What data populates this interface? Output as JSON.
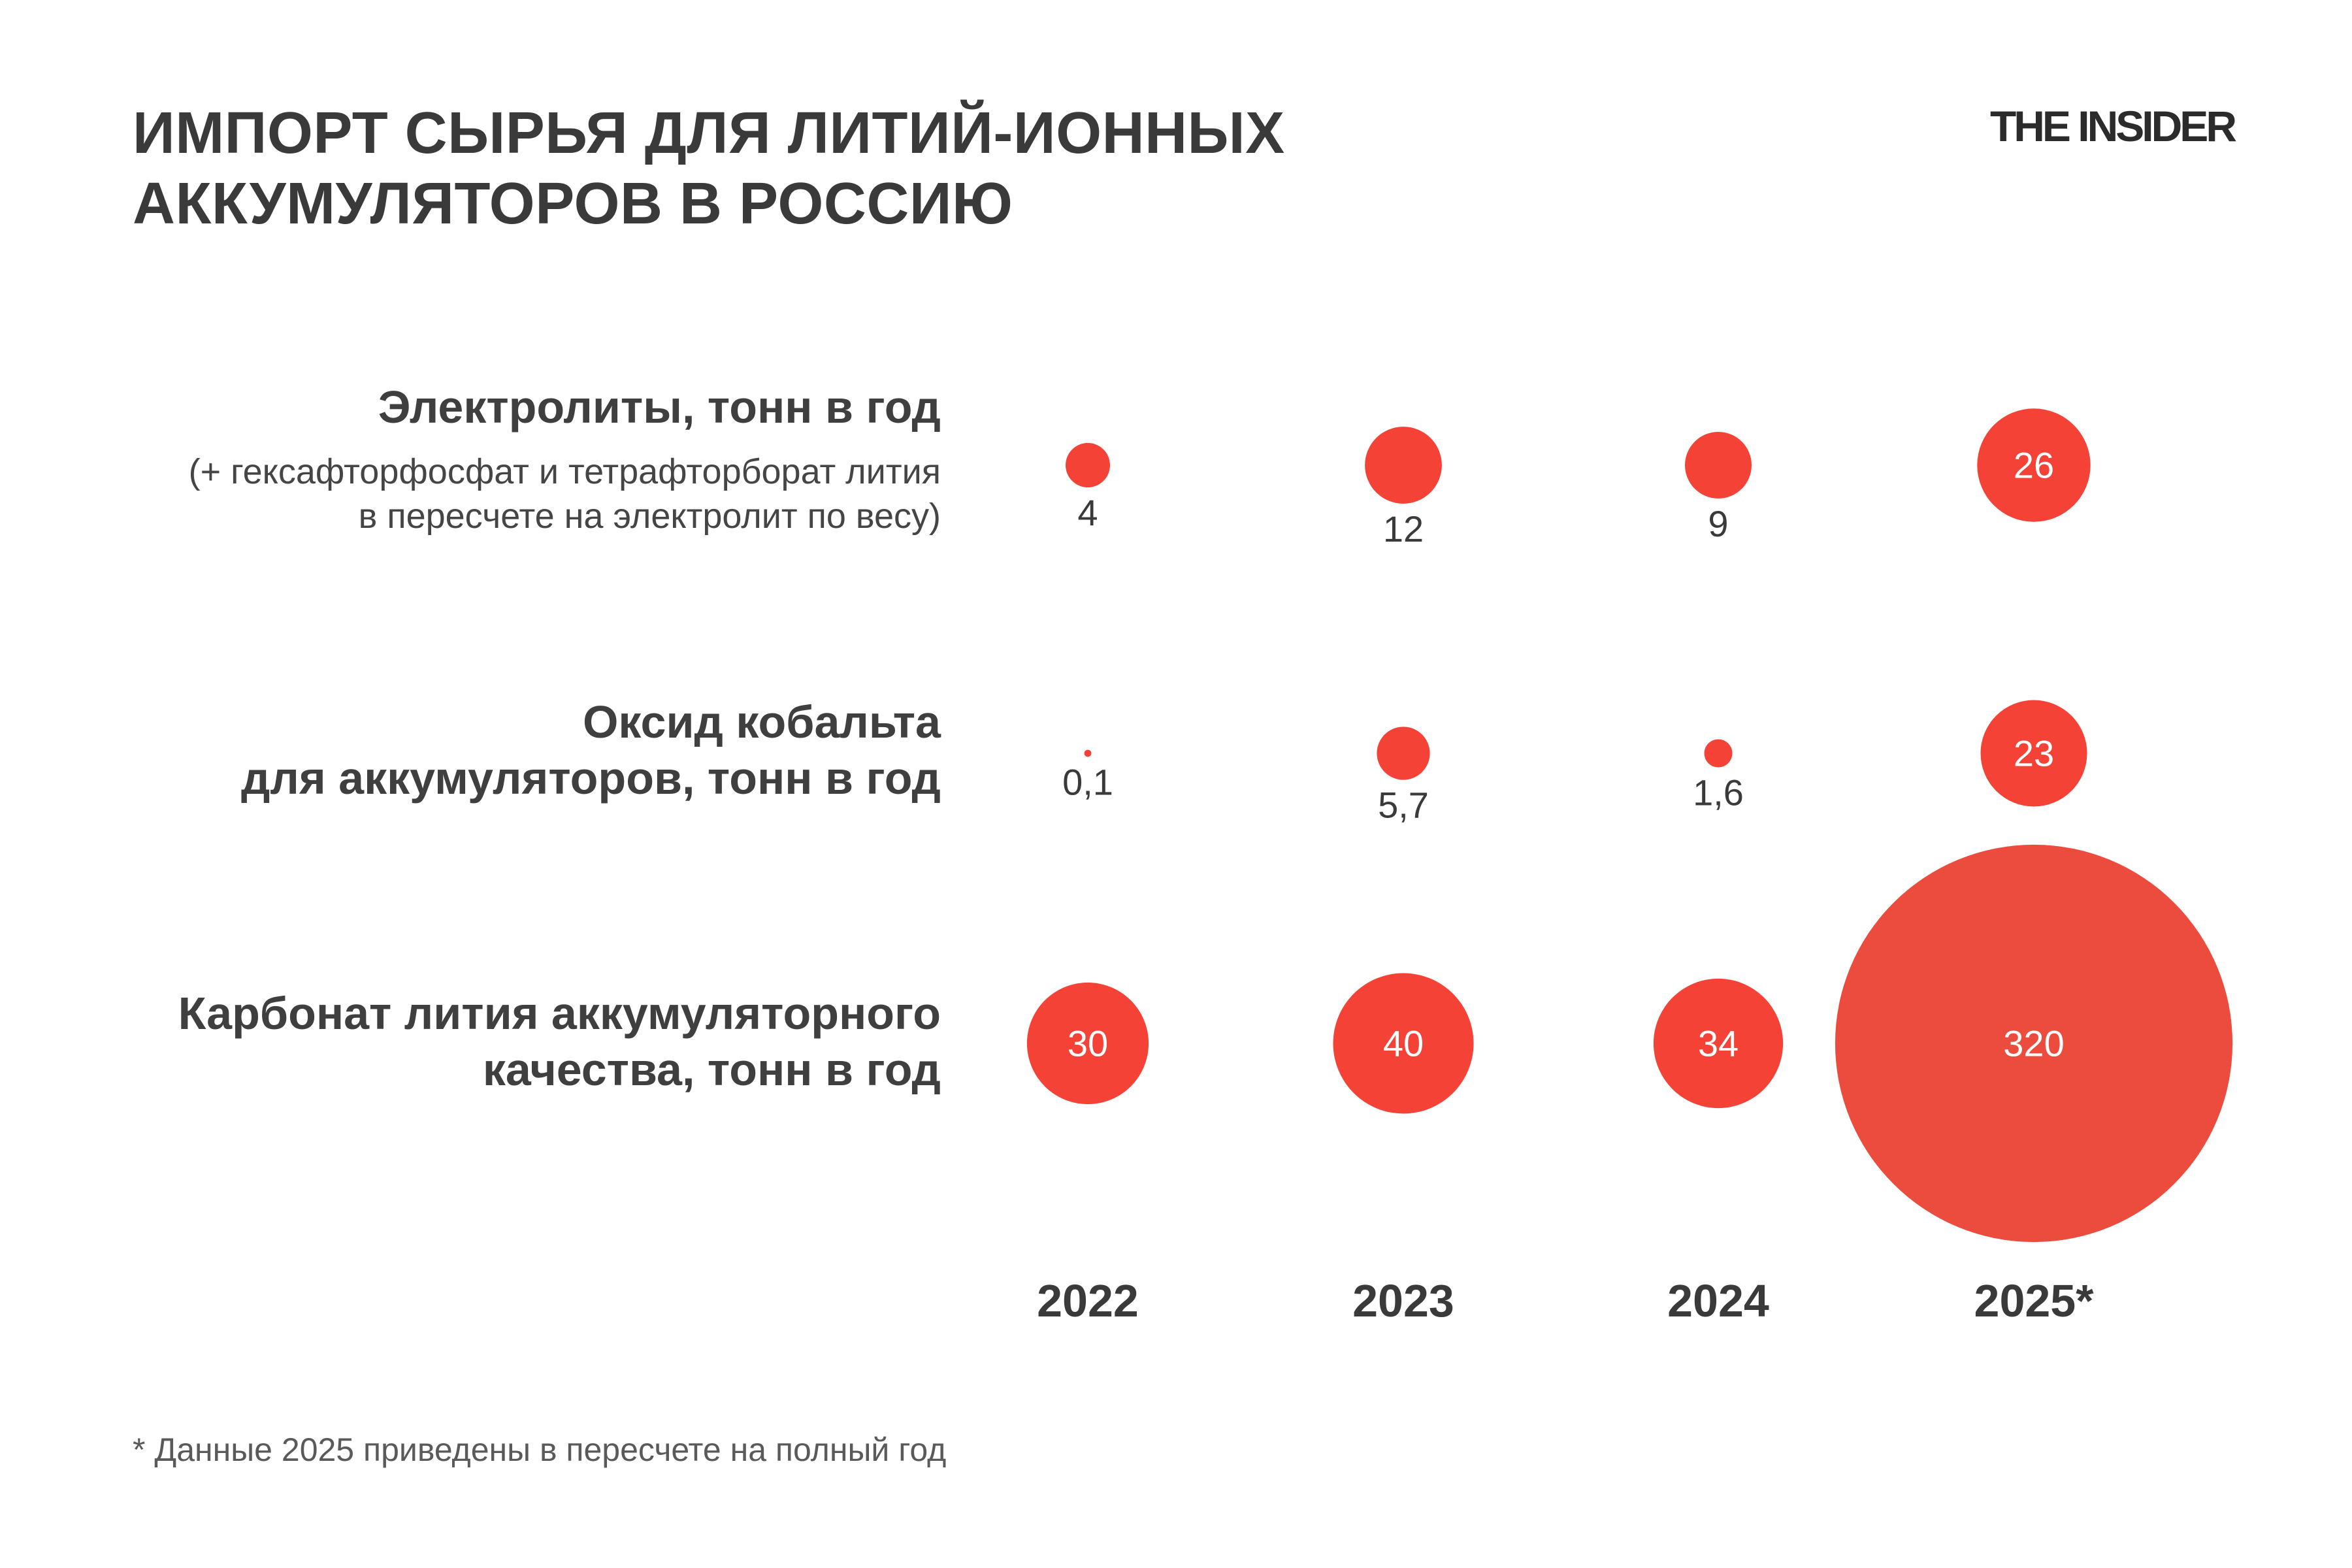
{
  "header": {
    "title_line1": "ИМПОРТ СЫРЬЯ ДЛЯ ЛИТИЙ-ИОННЫХ",
    "title_line2": "АККУМУЛЯТОРОВ В РОССИЮ",
    "brand": "THE INSIDER"
  },
  "rows": [
    {
      "label_line1": "Электролиты, тонн в год",
      "note_line1": "(+ гексафторфосфат и тетрафторборат лития",
      "note_line2": "в пересчете на электролит по весу)"
    },
    {
      "label_line1": "Оксид кобальта",
      "label_line2": "для аккумуляторов, тонн в год"
    },
    {
      "label_line1": "Карбонат лития аккумуляторного",
      "label_line2": "качества, тонн в год"
    }
  ],
  "footnote": "* Данные 2025 приведены в пересчете на полный год",
  "chart_data": {
    "type": "bubble",
    "categories": [
      "2022",
      "2023",
      "2024",
      "2025*"
    ],
    "series": [
      {
        "name": "Электролиты, тонн в год",
        "values": [
          4,
          12,
          9,
          26
        ],
        "labels": [
          "4",
          "12",
          "9",
          "26"
        ]
      },
      {
        "name": "Оксид кобальта для аккумуляторов, тонн в год",
        "values": [
          0.1,
          5.7,
          1.6,
          23
        ],
        "labels": [
          "0,1",
          "5,7",
          "1,6",
          "23"
        ]
      },
      {
        "name": "Карбонат лития аккумуляторного качества, тонн в год",
        "values": [
          30,
          40,
          34,
          320
        ],
        "labels": [
          "30",
          "40",
          "34",
          "320"
        ]
      }
    ],
    "size_encoding": "area",
    "colors": {
      "bubble": "#F44336",
      "bubble_large": "#EC4C3E",
      "label_inside": "#ffffff",
      "label_outside": "#3a3a3a",
      "year": "#3a3a3a"
    }
  }
}
